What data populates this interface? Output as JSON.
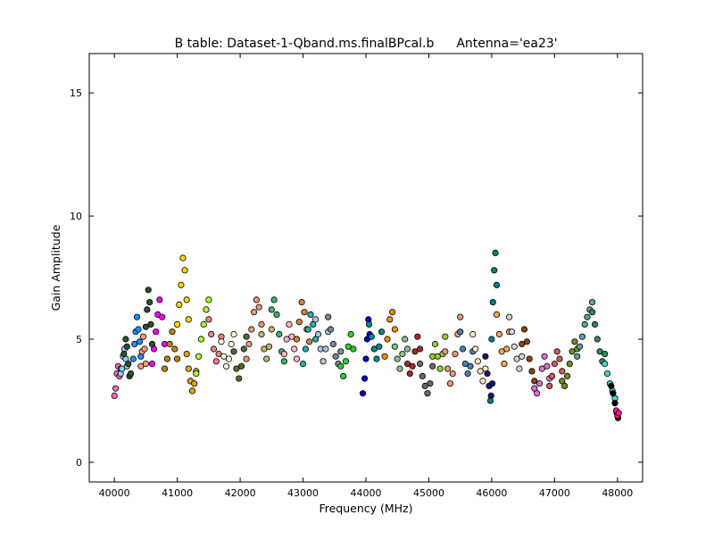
{
  "chart_data": {
    "type": "scatter",
    "title": "B table: Dataset-1-Qband.ms.finalBPcal.b",
    "subtitle": "Antenna='ea23'",
    "xlabel": "Frequency (MHz)",
    "ylabel": "Gain Amplitude",
    "xlim": [
      39600,
      48400
    ],
    "ylim": [
      -0.8,
      16.6
    ],
    "xticks": [
      40000,
      41000,
      42000,
      43000,
      44000,
      45000,
      46000,
      47000,
      48000
    ],
    "yticks": [
      0,
      5,
      10,
      15
    ],
    "xtick_labels": [
      "40000",
      "41000",
      "42000",
      "43000",
      "44000",
      "45000",
      "46000",
      "47000",
      "48000"
    ],
    "ytick_labels": [
      "0",
      "5",
      "10",
      "15"
    ],
    "grid": false,
    "legend": false,
    "marker_edge_color": "#000000",
    "series": [
      {
        "color": "#ff69b4",
        "x": [
          40000,
          40020,
          40040,
          40060,
          40080,
          40100
        ],
        "y": [
          2.7,
          3.0,
          3.6,
          3.9,
          3.5,
          3.8
        ]
      },
      {
        "color": "#87cefa",
        "x": [
          40100,
          40120,
          40140,
          40160,
          40180,
          40200
        ],
        "y": [
          3.6,
          3.8,
          4.3,
          4.6,
          4.2,
          3.9
        ]
      },
      {
        "color": "#2f4f2f",
        "x": [
          40150,
          40180,
          40200,
          40220,
          40240,
          40260
        ],
        "y": [
          4.4,
          5.0,
          4.7,
          4.0,
          3.5,
          3.6
        ]
      },
      {
        "color": "#1e90ff",
        "x": [
          40300,
          40320,
          40340,
          40360,
          40380,
          40400,
          40420
        ],
        "y": [
          4.2,
          4.8,
          5.3,
          5.9,
          5.4,
          4.9,
          4.3
        ]
      },
      {
        "color": "#ffa07a",
        "x": [
          40420,
          40440,
          40460,
          40480,
          40500
        ],
        "y": [
          3.9,
          4.5,
          5.1,
          4.6,
          4.0
        ]
      },
      {
        "color": "#2f4f2f",
        "x": [
          40500,
          40520,
          40540,
          40560,
          40580,
          40600
        ],
        "y": [
          5.5,
          6.2,
          7.0,
          6.5,
          5.6,
          4.8
        ]
      },
      {
        "color": "#ff00ff",
        "x": [
          40600,
          40630,
          40660,
          40690,
          40720,
          40760,
          40800
        ],
        "y": [
          4.0,
          4.6,
          5.3,
          6.0,
          6.6,
          5.9,
          4.8
        ]
      },
      {
        "color": "#b8860b",
        "x": [
          40800,
          40840,
          40880,
          40920,
          40960,
          41000
        ],
        "y": [
          3.8,
          4.2,
          4.8,
          5.3,
          4.6,
          4.2
        ]
      },
      {
        "color": "#ffd700",
        "x": [
          41000,
          41030,
          41060,
          41090,
          41120,
          41150,
          41180
        ],
        "y": [
          5.6,
          6.4,
          7.2,
          8.3,
          7.8,
          6.6,
          5.8
        ]
      },
      {
        "color": "#daa520",
        "x": [
          41150,
          41180,
          41210,
          41240,
          41270,
          41300
        ],
        "y": [
          4.4,
          3.8,
          3.3,
          2.9,
          3.2,
          3.7
        ]
      },
      {
        "color": "#adff2f",
        "x": [
          41300,
          41340,
          41380,
          41420,
          41460,
          41500
        ],
        "y": [
          3.6,
          4.3,
          5.0,
          5.6,
          6.2,
          6.6
        ]
      },
      {
        "color": "#f08080",
        "x": [
          41500,
          41540,
          41580,
          41620,
          41660,
          41700
        ],
        "y": [
          5.8,
          5.2,
          4.6,
          4.1,
          4.4,
          5.1
        ]
      },
      {
        "color": "#fff8dc",
        "x": [
          41700,
          41740,
          41780,
          41820,
          41860,
          41900
        ],
        "y": [
          4.9,
          4.3,
          3.9,
          4.2,
          4.8,
          5.2
        ]
      },
      {
        "color": "#556b2f",
        "x": [
          41900,
          41940,
          41980,
          42020,
          42060,
          42100
        ],
        "y": [
          4.5,
          3.8,
          3.4,
          3.9,
          4.6,
          5.1
        ]
      },
      {
        "color": "#e9967a",
        "x": [
          42100,
          42140,
          42180,
          42220,
          42260,
          42300,
          42340
        ],
        "y": [
          4.2,
          4.8,
          5.4,
          6.1,
          6.6,
          6.3,
          5.6
        ]
      },
      {
        "color": "#bdb76b",
        "x": [
          42340,
          42380,
          42420,
          42460,
          42500
        ],
        "y": [
          5.2,
          4.6,
          4.2,
          4.7,
          5.4
        ]
      },
      {
        "color": "#3cb371",
        "x": [
          42500,
          42540,
          42580,
          42620,
          42660,
          42700
        ],
        "y": [
          6.2,
          6.6,
          6.0,
          5.2,
          4.5,
          4.1
        ]
      },
      {
        "color": "#ffb6c1",
        "x": [
          42700,
          42740,
          42780,
          42820,
          42860,
          42900
        ],
        "y": [
          4.4,
          5.0,
          5.6,
          5.1,
          4.6,
          4.2
        ]
      },
      {
        "color": "#cd853f",
        "x": [
          42900,
          42940,
          42980,
          43020,
          43060,
          43100
        ],
        "y": [
          5.0,
          5.7,
          6.5,
          6.1,
          5.4,
          4.9
        ]
      },
      {
        "color": "#20b2aa",
        "x": [
          43000,
          43040,
          43080,
          43120,
          43160,
          43200
        ],
        "y": [
          4.0,
          4.6,
          5.4,
          6.0,
          5.6,
          5.0
        ]
      },
      {
        "color": "#b0c4de",
        "x": [
          43200,
          43240,
          43280,
          43320,
          43360,
          43400
        ],
        "y": [
          5.8,
          5.2,
          4.6,
          4.1,
          4.6,
          5.3
        ]
      },
      {
        "color": "#778899",
        "x": [
          43400,
          43440,
          43480,
          43520,
          43560,
          43600
        ],
        "y": [
          5.9,
          5.4,
          4.8,
          4.3,
          4.0,
          4.5
        ]
      },
      {
        "color": "#32cd32",
        "x": [
          43600,
          43640,
          43680,
          43720,
          43760,
          43800
        ],
        "y": [
          3.9,
          3.5,
          4.1,
          4.7,
          5.2,
          4.6
        ]
      },
      {
        "color": "#0000cd",
        "x": [
          43950,
          43980,
          44000,
          44020,
          44040,
          44060
        ],
        "y": [
          2.8,
          3.4,
          4.2,
          5.0,
          5.8,
          5.2
        ]
      },
      {
        "color": "#008b8b",
        "x": [
          44050,
          44090,
          44130,
          44170,
          44210,
          44250
        ],
        "y": [
          5.6,
          5.1,
          4.6,
          4.2,
          4.7,
          5.3
        ]
      },
      {
        "color": "#ff8c00",
        "x": [
          44300,
          44340,
          44380,
          44420,
          44460
        ],
        "y": [
          4.3,
          5.0,
          5.8,
          6.1,
          5.4
        ]
      },
      {
        "color": "#8fbc8f",
        "x": [
          44460,
          44500,
          44540,
          44580,
          44620,
          44660
        ],
        "y": [
          4.7,
          4.2,
          3.8,
          4.4,
          5.0,
          4.6
        ]
      },
      {
        "color": "#a52a2a",
        "x": [
          44660,
          44700,
          44740,
          44780,
          44820,
          44860
        ],
        "y": [
          4.0,
          3.6,
          3.9,
          4.5,
          5.1,
          4.6
        ]
      },
      {
        "color": "#696969",
        "x": [
          44860,
          44900,
          44940,
          44980,
          45020,
          45060
        ],
        "y": [
          4.0,
          3.5,
          3.1,
          2.8,
          3.2,
          3.9
        ]
      },
      {
        "color": "#9acd32",
        "x": [
          45060,
          45100,
          45140,
          45180,
          45220,
          45260
        ],
        "y": [
          4.3,
          4.8,
          4.3,
          3.8,
          4.4,
          5.1
        ]
      },
      {
        "color": "#e9967a",
        "x": [
          45260,
          45300,
          45340,
          45380,
          45420,
          45460,
          45500
        ],
        "y": [
          4.5,
          3.8,
          3.2,
          3.6,
          4.4,
          5.2,
          5.9
        ]
      },
      {
        "color": "#4682b4",
        "x": [
          45500,
          45540,
          45580,
          45620,
          45660,
          45700
        ],
        "y": [
          5.3,
          4.6,
          4.0,
          3.6,
          3.9,
          4.5
        ]
      },
      {
        "color": "#ffe4c4",
        "x": [
          45700,
          45740,
          45780,
          45820,
          45860,
          45900
        ],
        "y": [
          5.2,
          4.6,
          4.1,
          3.7,
          3.3,
          3.8
        ]
      },
      {
        "color": "#191970",
        "x": [
          45900,
          45930,
          45960,
          45990,
          46010
        ],
        "y": [
          4.3,
          3.6,
          3.1,
          2.7,
          3.2
        ]
      },
      {
        "color": "#008080",
        "x": [
          45980,
          46000,
          46020,
          46040,
          46060,
          46080
        ],
        "y": [
          2.5,
          5.0,
          6.5,
          7.8,
          8.5,
          7.2
        ]
      },
      {
        "color": "#f4a460",
        "x": [
          46080,
          46120,
          46160,
          46200,
          46240,
          46280
        ],
        "y": [
          6.0,
          5.2,
          4.5,
          4.0,
          4.6,
          5.3
        ]
      },
      {
        "color": "#d3d3d3",
        "x": [
          46280,
          46320,
          46360,
          46400,
          46440,
          46480
        ],
        "y": [
          5.9,
          5.3,
          4.7,
          4.2,
          3.8,
          4.3
        ]
      },
      {
        "color": "#8b4513",
        "x": [
          46480,
          46520,
          46560,
          46600,
          46640,
          46680
        ],
        "y": [
          4.8,
          5.4,
          4.9,
          4.2,
          3.7,
          3.3
        ]
      },
      {
        "color": "#da70d6",
        "x": [
          46680,
          46720,
          46760,
          46800,
          46840,
          46880,
          46920
        ],
        "y": [
          3.0,
          2.8,
          3.2,
          3.8,
          4.3,
          3.9,
          3.4
        ]
      },
      {
        "color": "#cd5c5c",
        "x": [
          46920,
          46960,
          47000,
          47040,
          47080,
          47120
        ],
        "y": [
          3.1,
          3.5,
          4.0,
          4.5,
          4.2,
          3.7
        ]
      },
      {
        "color": "#6b8e23",
        "x": [
          47120,
          47160,
          47200,
          47240,
          47280,
          47320,
          47360
        ],
        "y": [
          3.3,
          3.1,
          3.5,
          4.0,
          4.5,
          4.9,
          4.6
        ]
      },
      {
        "color": "#5f9ea0",
        "x": [
          47360,
          47400,
          47440,
          47480,
          47520,
          47560,
          47600
        ],
        "y": [
          4.3,
          4.7,
          5.1,
          5.6,
          5.9,
          6.2,
          6.5
        ]
      },
      {
        "color": "#2e8b57",
        "x": [
          47600,
          47640,
          47680,
          47720,
          47760,
          47800
        ],
        "y": [
          6.1,
          5.6,
          5.0,
          4.5,
          4.1,
          4.4
        ]
      },
      {
        "color": "#48d1cc",
        "x": [
          47800,
          47840,
          47880,
          47920,
          47960
        ],
        "y": [
          4.0,
          3.6,
          3.2,
          2.9,
          2.6
        ]
      },
      {
        "color": "#000000",
        "x": [
          47900,
          47930,
          47960,
          47990,
          48010
        ],
        "y": [
          3.1,
          2.8,
          2.4,
          2.0,
          1.8
        ]
      },
      {
        "color": "#ff1493",
        "x": [
          47980,
          48000,
          48020
        ],
        "y": [
          2.1,
          1.9,
          2.0
        ]
      }
    ]
  }
}
